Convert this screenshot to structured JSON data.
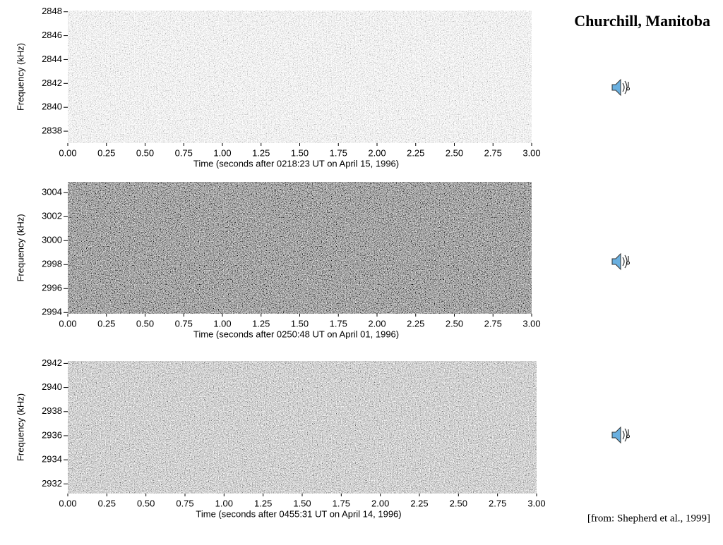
{
  "title": "Churchill, Manitoba",
  "source": "[from: Shepherd et al., 1999]",
  "chart_data": [
    {
      "type": "spectrogram",
      "xlabel": "Time (seconds after 0218:23 UT on April 15, 1996)",
      "ylabel": "Frequency (kHz)",
      "xlim": [
        0,
        3
      ],
      "xticks": [
        {
          "value": 0,
          "label": "0.00"
        },
        {
          "value": 0.25,
          "label": "0.25"
        },
        {
          "value": 0.5,
          "label": "0.50"
        },
        {
          "value": 0.75,
          "label": "0.75"
        },
        {
          "value": 1,
          "label": "1.00"
        },
        {
          "value": 1.25,
          "label": "1.25"
        },
        {
          "value": 1.5,
          "label": "1.50"
        },
        {
          "value": 1.75,
          "label": "1.75"
        },
        {
          "value": 2,
          "label": "2.00"
        },
        {
          "value": 2.25,
          "label": "2.25"
        },
        {
          "value": 2.5,
          "label": "2.50"
        },
        {
          "value": 2.75,
          "label": "2.75"
        },
        {
          "value": 3,
          "label": "3.00"
        }
      ],
      "ylim": [
        2837,
        2848.1
      ],
      "yticks": [
        2838,
        2840,
        2842,
        2844,
        2846,
        2848
      ],
      "shade": "light"
    },
    {
      "type": "spectrogram",
      "xlabel": "Time (seconds after 0250:48 UT on April 01, 1996)",
      "ylabel": "Frequency (kHz)",
      "xlim": [
        0,
        3
      ],
      "xticks": [
        {
          "value": 0,
          "label": "0.00"
        },
        {
          "value": 0.25,
          "label": "0.25"
        },
        {
          "value": 0.5,
          "label": "0.50"
        },
        {
          "value": 0.75,
          "label": "0.75"
        },
        {
          "value": 1,
          "label": "1.00"
        },
        {
          "value": 1.25,
          "label": "1.25"
        },
        {
          "value": 1.5,
          "label": "1.50"
        },
        {
          "value": 1.75,
          "label": "1.75"
        },
        {
          "value": 2,
          "label": "2.00"
        },
        {
          "value": 2.25,
          "label": "2.25"
        },
        {
          "value": 2.5,
          "label": "2.50"
        },
        {
          "value": 2.75,
          "label": "2.75"
        },
        {
          "value": 3,
          "label": "3.00"
        }
      ],
      "ylim": [
        2993.9,
        3004.9
      ],
      "yticks": [
        2994,
        2996,
        2998,
        3000,
        3002,
        3004
      ],
      "shade": "dark"
    },
    {
      "type": "spectrogram",
      "xlabel": "Time (seconds after 0455:31 UT on April 14, 1996)",
      "ylabel": "Frequency (kHz)",
      "xlim": [
        0,
        3
      ],
      "xticks": [
        {
          "value": 0,
          "label": "0.00"
        },
        {
          "value": 0.25,
          "label": "0.25"
        },
        {
          "value": 0.5,
          "label": "0.50"
        },
        {
          "value": 0.75,
          "label": "0.75"
        },
        {
          "value": 1,
          "label": "1.00"
        },
        {
          "value": 1.25,
          "label": "1.25"
        },
        {
          "value": 1.5,
          "label": "1.50"
        },
        {
          "value": 1.75,
          "label": "1.75"
        },
        {
          "value": 2,
          "label": "2.00"
        },
        {
          "value": 2.25,
          "label": "2.25"
        },
        {
          "value": 2.5,
          "label": "2.50"
        },
        {
          "value": 2.75,
          "label": "2.75"
        },
        {
          "value": 3,
          "label": "3.00"
        }
      ],
      "ylim": [
        2931.2,
        2942.2
      ],
      "yticks": [
        2932,
        2934,
        2936,
        2938,
        2940,
        2942
      ],
      "shade": "mid"
    }
  ]
}
